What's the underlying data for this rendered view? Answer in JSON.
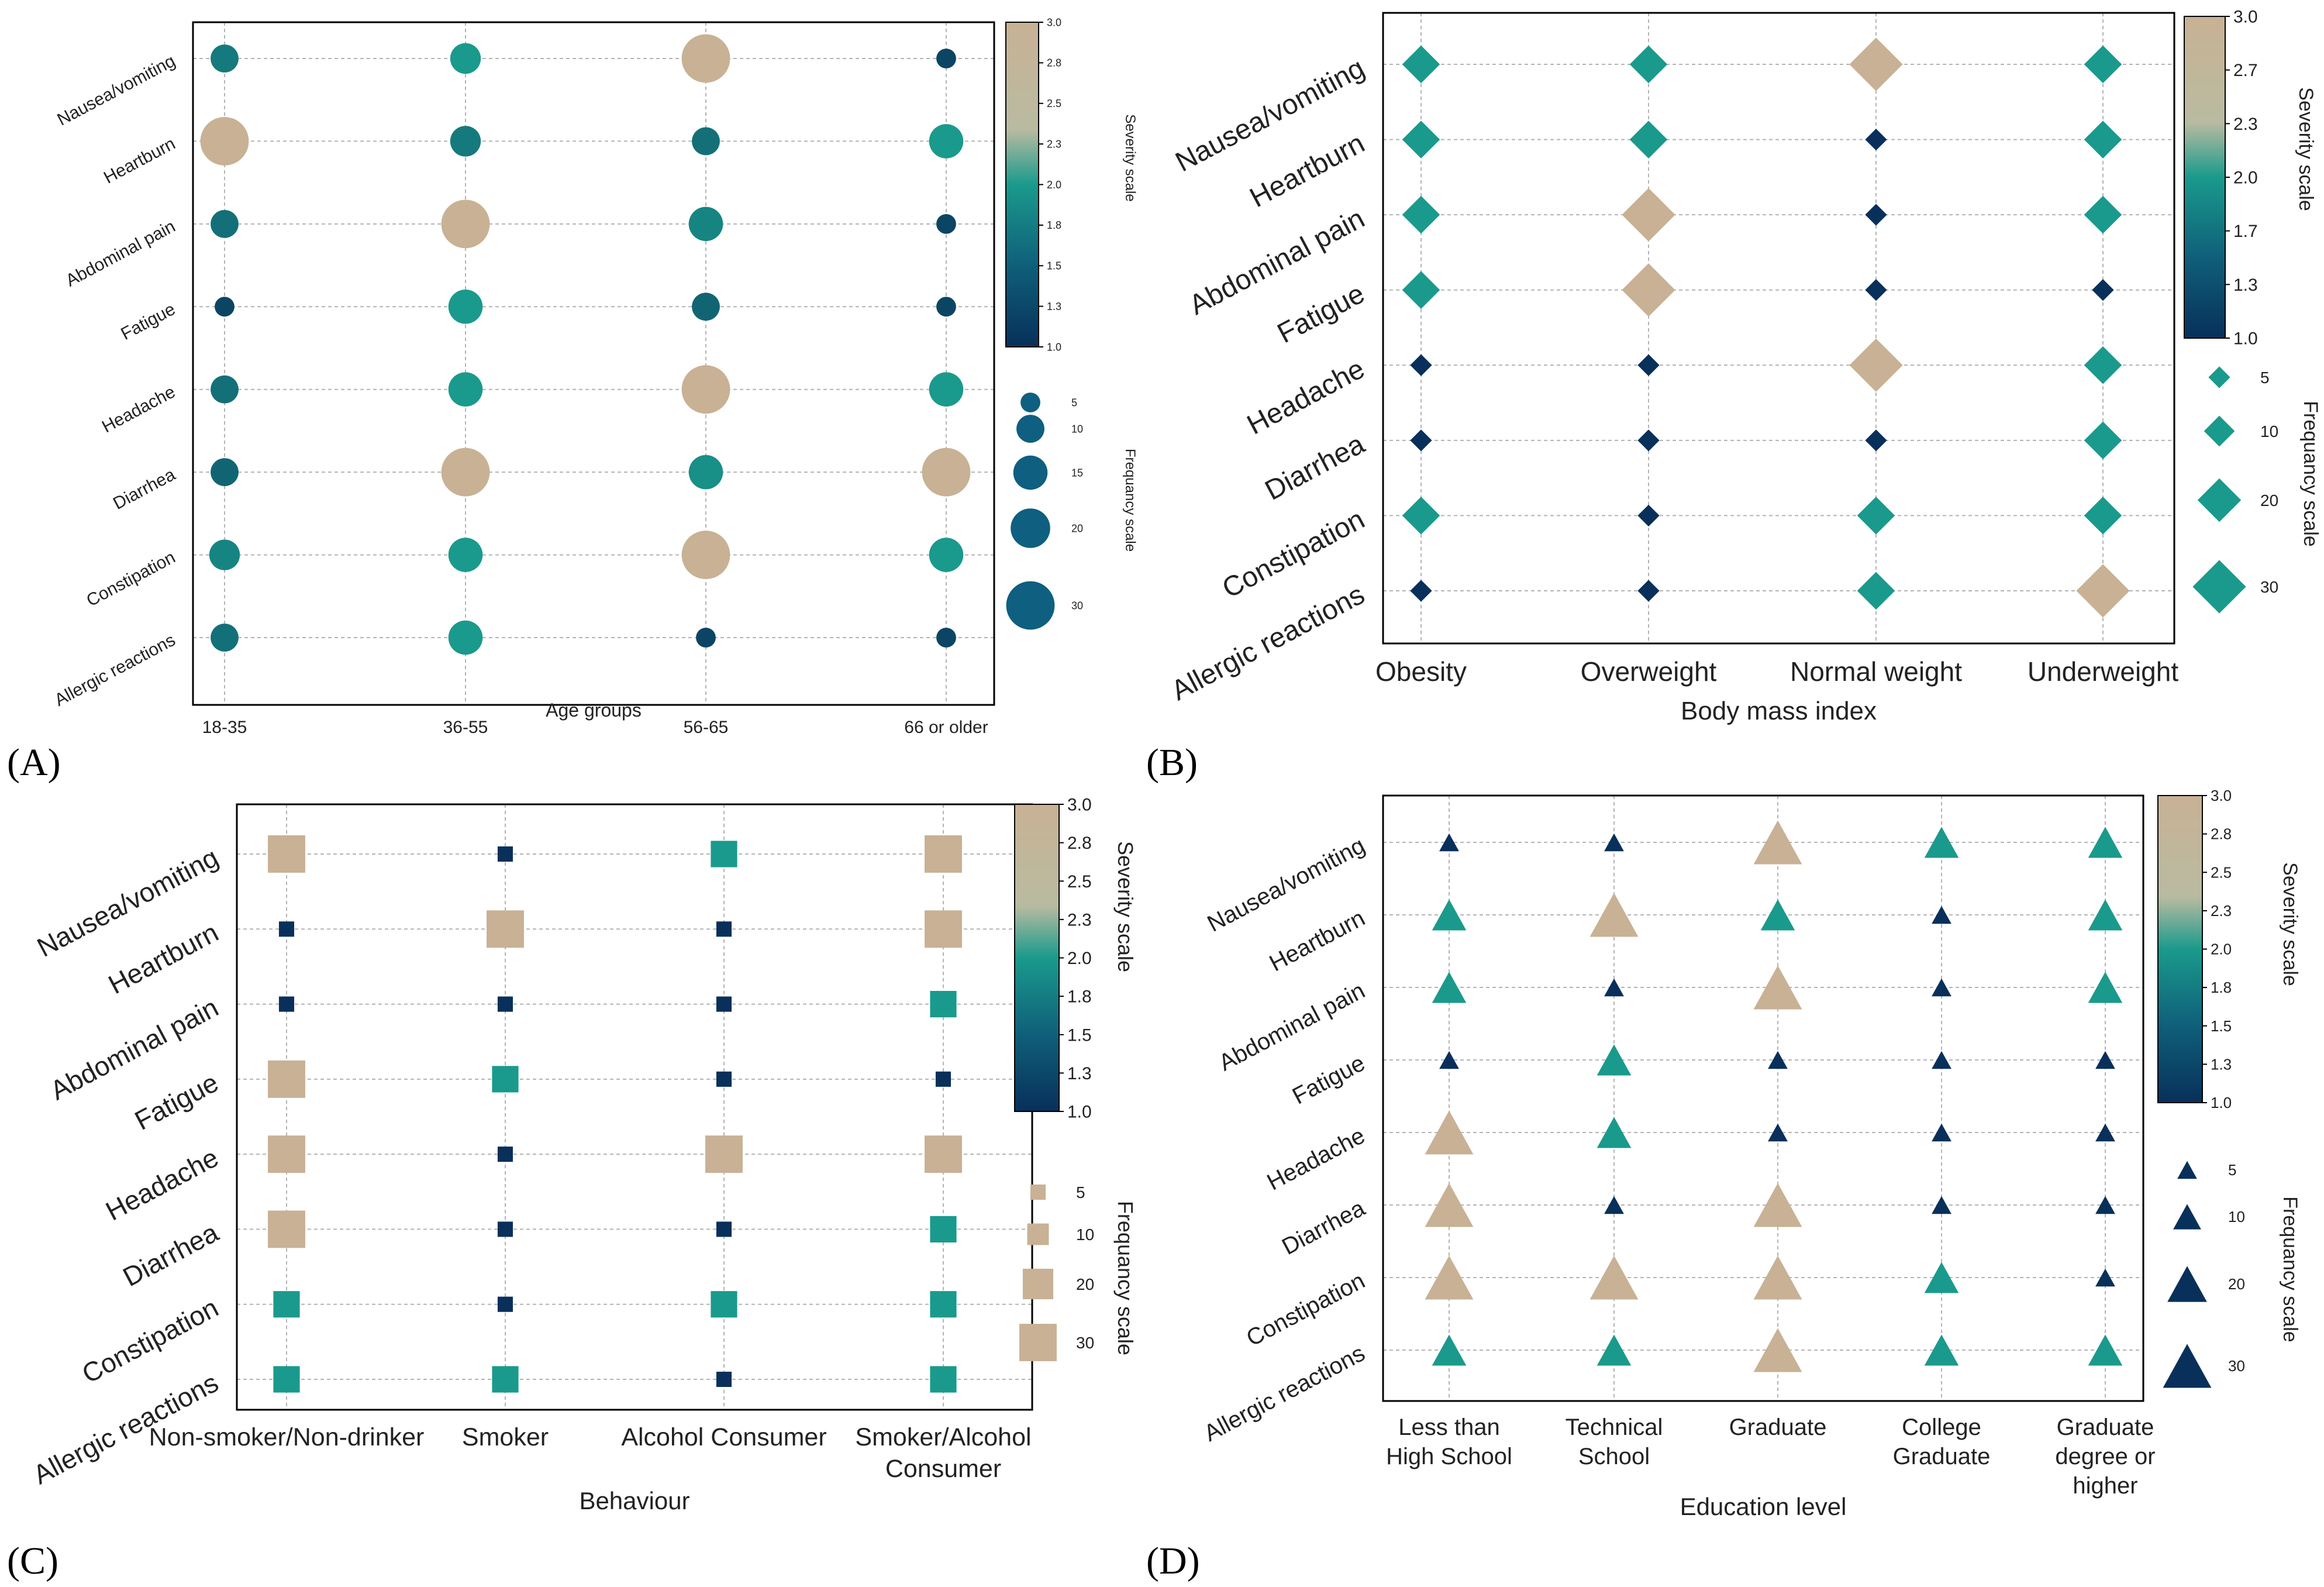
{
  "figure": {
    "symptoms": [
      "Nausea/vomiting",
      "Heartburn",
      "Abdominal pain",
      "Fatigue",
      "Headache",
      "Diarrhea",
      "Constipation",
      "Allergic reactions"
    ],
    "colors": {
      "low": "#08305a",
      "mid": "#1a9a8c",
      "high": "#c8b194",
      "grid": "#b4b4b4"
    }
  },
  "chart_data": [
    {
      "panel": "(A)",
      "type": "scatter",
      "marker": "circle",
      "xlabel": "Age groups",
      "categories": [
        "18-35",
        "36-55",
        "56-65",
        "66 or older"
      ],
      "severity_legend": {
        "title": "Severity scale",
        "range": [
          1.0,
          3.0
        ],
        "ticks": [
          "3.0",
          "2.8",
          "2.5",
          "2.3",
          "2.0",
          "1.8",
          "1.5",
          "1.3",
          "1.0"
        ]
      },
      "frequency_legend": {
        "title": "Frequancy scale",
        "levels": [
          5,
          10,
          15,
          20,
          30
        ]
      },
      "series": [
        {
          "name": "Nausea/vomiting",
          "severity": [
            1.7,
            2.0,
            3.0,
            1.2
          ],
          "frequency": [
            10,
            12,
            30,
            5
          ]
        },
        {
          "name": "Heartburn",
          "severity": [
            3.0,
            1.7,
            1.6,
            2.0
          ],
          "frequency": [
            30,
            12,
            10,
            15
          ]
        },
        {
          "name": "Abdominal pain",
          "severity": [
            1.6,
            3.0,
            1.8,
            1.2
          ],
          "frequency": [
            10,
            30,
            15,
            5
          ]
        },
        {
          "name": "Fatigue",
          "severity": [
            1.2,
            2.0,
            1.5,
            1.2
          ],
          "frequency": [
            5,
            15,
            10,
            5
          ]
        },
        {
          "name": "Headache",
          "severity": [
            1.6,
            2.0,
            3.0,
            2.0
          ],
          "frequency": [
            10,
            15,
            30,
            15
          ]
        },
        {
          "name": "Diarrhea",
          "severity": [
            1.5,
            3.0,
            1.9,
            3.0
          ],
          "frequency": [
            10,
            30,
            15,
            30
          ]
        },
        {
          "name": "Constipation",
          "severity": [
            1.8,
            2.0,
            3.0,
            2.0
          ],
          "frequency": [
            12,
            15,
            30,
            15
          ]
        },
        {
          "name": "Allergic reactions",
          "severity": [
            1.6,
            2.0,
            1.2,
            1.2
          ],
          "frequency": [
            10,
            15,
            5,
            5
          ]
        }
      ]
    },
    {
      "panel": "(B)",
      "type": "scatter",
      "marker": "diamond",
      "xlabel": "Body mass index",
      "categories": [
        "Obesity",
        "Overweight",
        "Normal weight",
        "Underweight"
      ],
      "severity_legend": {
        "title": "Severity scale",
        "range": [
          1.0,
          3.0
        ],
        "ticks": [
          "3.0",
          "2.7",
          "2.3",
          "2.0",
          "1.7",
          "1.3",
          "1.0"
        ]
      },
      "frequency_legend": {
        "title": "Frequancy scale",
        "levels": [
          5,
          10,
          20,
          30
        ]
      },
      "series": [
        {
          "name": "Nausea/vomiting",
          "severity": [
            2.0,
            2.0,
            3.0,
            2.0
          ],
          "frequency": [
            15,
            15,
            30,
            15
          ]
        },
        {
          "name": "Heartburn",
          "severity": [
            2.0,
            2.0,
            1.0,
            2.0
          ],
          "frequency": [
            15,
            15,
            5,
            15
          ]
        },
        {
          "name": "Abdominal pain",
          "severity": [
            2.0,
            3.0,
            1.0,
            2.0
          ],
          "frequency": [
            15,
            30,
            5,
            15
          ]
        },
        {
          "name": "Fatigue",
          "severity": [
            2.0,
            3.0,
            1.0,
            1.0
          ],
          "frequency": [
            15,
            30,
            5,
            5
          ]
        },
        {
          "name": "Headache",
          "severity": [
            1.0,
            1.0,
            3.0,
            2.0
          ],
          "frequency": [
            5,
            5,
            30,
            15
          ]
        },
        {
          "name": "Diarrhea",
          "severity": [
            1.0,
            1.0,
            1.0,
            2.0
          ],
          "frequency": [
            5,
            5,
            5,
            15
          ]
        },
        {
          "name": "Constipation",
          "severity": [
            2.0,
            1.0,
            2.0,
            2.0
          ],
          "frequency": [
            15,
            5,
            15,
            15
          ]
        },
        {
          "name": "Allergic reactions",
          "severity": [
            1.0,
            1.0,
            2.0,
            3.0
          ],
          "frequency": [
            5,
            5,
            15,
            30
          ]
        }
      ]
    },
    {
      "panel": "(C)",
      "type": "scatter",
      "marker": "square",
      "xlabel": "Behaviour",
      "categories": [
        "Non-smoker/Non-drinker",
        "Smoker",
        "Alcohol Consumer",
        "Smoker/Alcohol Consumer"
      ],
      "severity_legend": {
        "title": "Severity scale",
        "range": [
          1.0,
          3.0
        ],
        "ticks": [
          "3.0",
          "2.8",
          "2.5",
          "2.3",
          "2.0",
          "1.8",
          "1.5",
          "1.3",
          "1.0"
        ]
      },
      "frequency_legend": {
        "title": "Frequancy scale",
        "levels": [
          5,
          10,
          20,
          30
        ]
      },
      "series": [
        {
          "name": "Nausea/vomiting",
          "severity": [
            3.0,
            1.0,
            2.0,
            3.0
          ],
          "frequency": [
            30,
            5,
            15,
            30
          ]
        },
        {
          "name": "Heartburn",
          "severity": [
            1.0,
            3.0,
            1.0,
            3.0
          ],
          "frequency": [
            5,
            30,
            5,
            30
          ]
        },
        {
          "name": "Abdominal pain",
          "severity": [
            1.0,
            1.0,
            1.0,
            2.0
          ],
          "frequency": [
            5,
            5,
            5,
            15
          ]
        },
        {
          "name": "Fatigue",
          "severity": [
            3.0,
            2.0,
            1.0,
            1.0
          ],
          "frequency": [
            30,
            15,
            5,
            5
          ]
        },
        {
          "name": "Headache",
          "severity": [
            3.0,
            1.0,
            3.0,
            3.0
          ],
          "frequency": [
            30,
            5,
            30,
            30
          ]
        },
        {
          "name": "Diarrhea",
          "severity": [
            3.0,
            1.0,
            1.0,
            2.0
          ],
          "frequency": [
            30,
            5,
            5,
            15
          ]
        },
        {
          "name": "Constipation",
          "severity": [
            2.0,
            1.0,
            2.0,
            2.0
          ],
          "frequency": [
            15,
            5,
            15,
            15
          ]
        },
        {
          "name": "Allergic reactions",
          "severity": [
            2.0,
            2.0,
            1.0,
            2.0
          ],
          "frequency": [
            15,
            15,
            5,
            15
          ]
        }
      ]
    },
    {
      "panel": "(D)",
      "type": "scatter",
      "marker": "triangle",
      "xlabel": "Education level",
      "categories": [
        "Less than High School",
        "Technical School",
        "Graduate",
        "College Graduate",
        "Graduate degree or higher"
      ],
      "severity_legend": {
        "title": "Severity scale",
        "range": [
          1.0,
          3.0
        ],
        "ticks": [
          "3.0",
          "2.8",
          "2.5",
          "2.3",
          "2.0",
          "1.8",
          "1.5",
          "1.3",
          "1.0"
        ]
      },
      "frequency_legend": {
        "title": "Frequancy scale",
        "levels": [
          5,
          10,
          20,
          30
        ]
      },
      "series": [
        {
          "name": "Nausea/vomiting",
          "severity": [
            1.0,
            1.0,
            3.0,
            2.0,
            2.0
          ],
          "frequency": [
            5,
            5,
            30,
            15,
            15
          ]
        },
        {
          "name": "Heartburn",
          "severity": [
            2.0,
            3.0,
            2.0,
            1.0,
            2.0
          ],
          "frequency": [
            15,
            30,
            15,
            5,
            15
          ]
        },
        {
          "name": "Abdominal pain",
          "severity": [
            2.0,
            1.0,
            3.0,
            1.0,
            2.0
          ],
          "frequency": [
            15,
            5,
            30,
            5,
            15
          ]
        },
        {
          "name": "Fatigue",
          "severity": [
            1.0,
            2.0,
            1.0,
            1.0,
            1.0
          ],
          "frequency": [
            5,
            15,
            5,
            5,
            5
          ]
        },
        {
          "name": "Headache",
          "severity": [
            3.0,
            2.0,
            1.0,
            1.0,
            1.0
          ],
          "frequency": [
            30,
            15,
            5,
            5,
            5
          ]
        },
        {
          "name": "Diarrhea",
          "severity": [
            3.0,
            1.0,
            3.0,
            1.0,
            1.0
          ],
          "frequency": [
            30,
            5,
            30,
            5,
            5
          ]
        },
        {
          "name": "Constipation",
          "severity": [
            3.0,
            3.0,
            3.0,
            2.0,
            1.0
          ],
          "frequency": [
            30,
            30,
            30,
            15,
            5
          ]
        },
        {
          "name": "Allergic reactions",
          "severity": [
            2.0,
            2.0,
            3.0,
            2.0,
            2.0
          ],
          "frequency": [
            15,
            15,
            30,
            15,
            15
          ]
        }
      ]
    }
  ]
}
